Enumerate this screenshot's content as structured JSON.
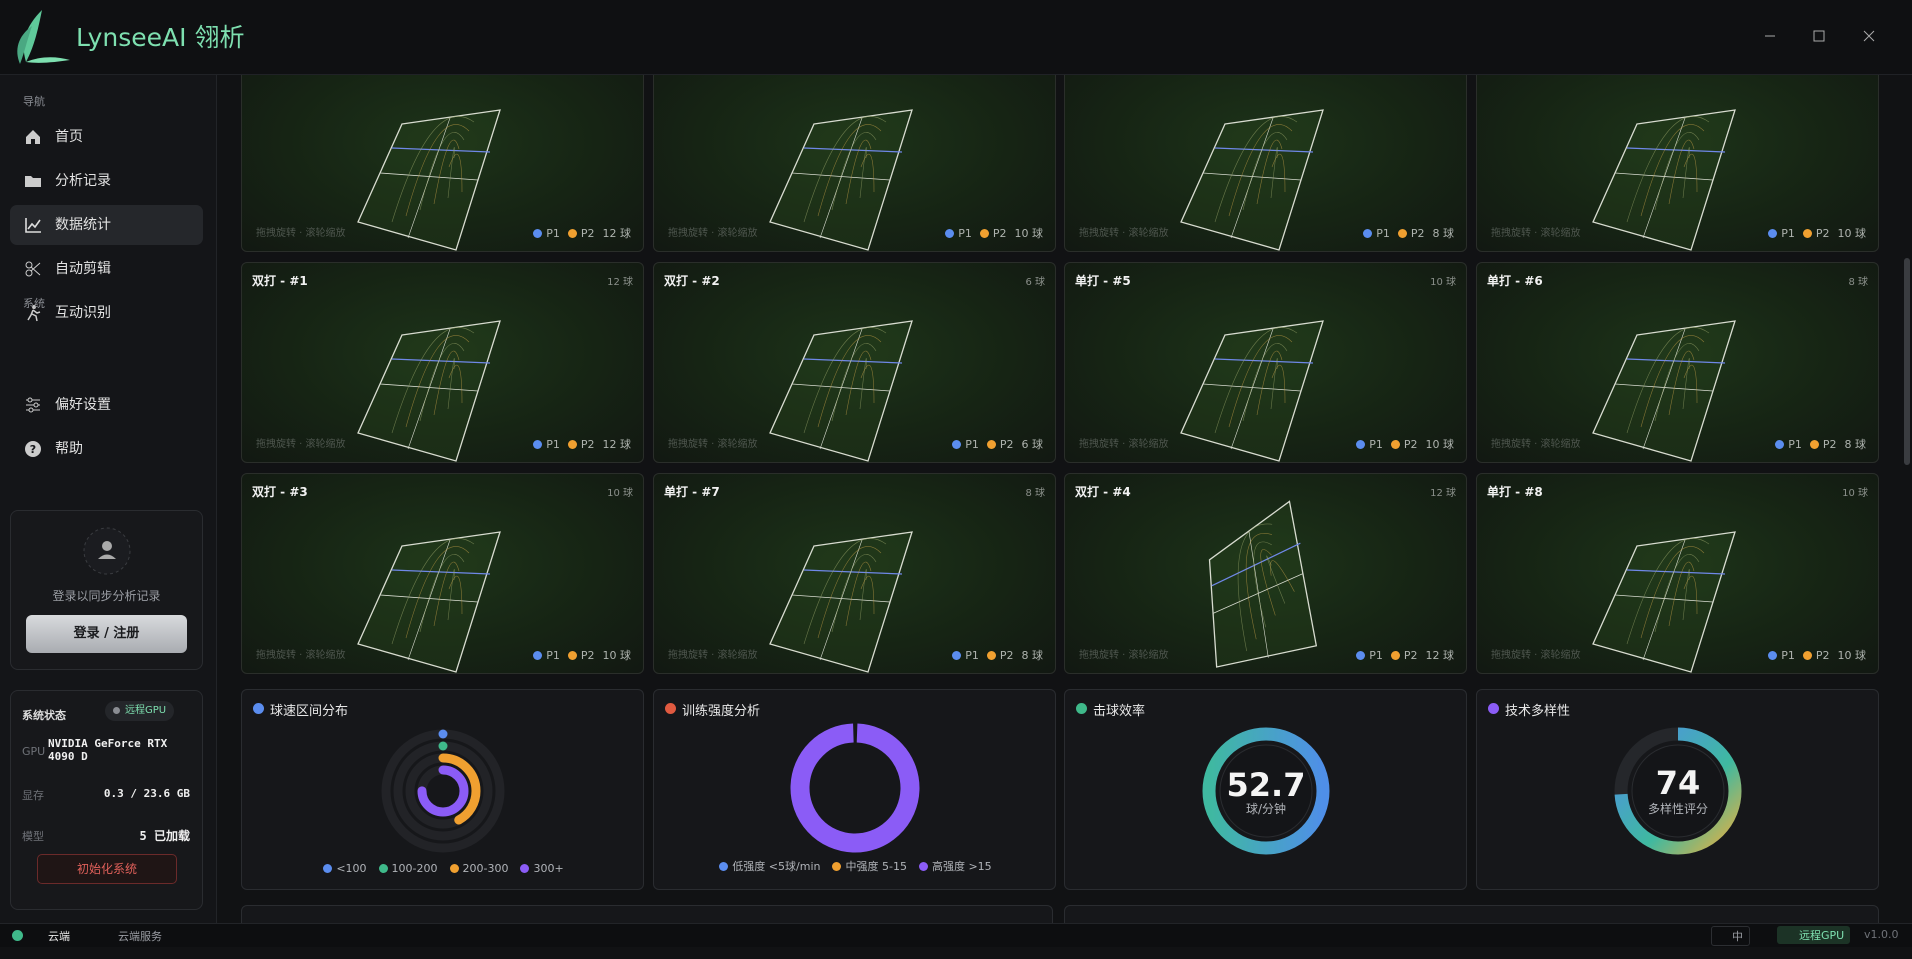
{
  "app": {
    "name": "LynseeAI 翎析"
  },
  "sidebar": {
    "nav_heading": "导航",
    "nav": [
      "首页",
      "分析记录",
      "数据统计",
      "自动剪辑",
      "互动识别"
    ],
    "system_heading": "系统",
    "system": [
      "偏好设置",
      "帮助"
    ]
  },
  "login": {
    "prompt": "登录以同步分析记录",
    "button": "登录 / 注册"
  },
  "status": {
    "title": "系统状态",
    "badge": "远程GPU",
    "rows": [
      [
        "GPU",
        "NVIDIA GeForce RTX 4090 D"
      ],
      [
        "显存",
        "0.3 / 23.6 GB"
      ],
      [
        "模型",
        "5 已加载"
      ]
    ],
    "button": "初始化系统"
  },
  "card_hint": "拖拽旋转 · 滚轮缩放",
  "players": [
    "P1",
    "P2"
  ],
  "cards": [
    {
      "balls": "12 球"
    },
    {
      "balls": "10 球"
    },
    {
      "balls": "8 球"
    },
    {
      "balls": "10 球"
    },
    {
      "title": "双打 - #1",
      "balls": "12 球"
    },
    {
      "title": "双打 - #2",
      "balls": "6 球"
    },
    {
      "title": "单打 - #5",
      "balls": "10 球"
    },
    {
      "title": "单打 - #6",
      "balls": "8 球"
    },
    {
      "title": "双打 - #3",
      "balls": "10 球"
    },
    {
      "title": "单打 - #7",
      "balls": "8 球"
    },
    {
      "title": "双打 - #4",
      "balls": "12 球"
    },
    {
      "title": "单打 - #8",
      "balls": "10 球"
    }
  ],
  "stats": {
    "speed": {
      "title": "球速区间分布",
      "categories": [
        "<100",
        "100-200",
        "200-300",
        "300+"
      ],
      "colors": [
        "#5b8def",
        "#3fb98a",
        "#f0a030",
        "#8b5cf6"
      ],
      "values": [
        0,
        0,
        42,
        75
      ]
    },
    "intensity": {
      "title": "训练强度分析",
      "categories": [
        "低强度 <5球/min",
        "中强度 5-15",
        "高强度 >15"
      ],
      "colors": [
        "#5b8def",
        "#f0a030",
        "#8b5cf6"
      ],
      "values": [
        0,
        0,
        100
      ]
    },
    "efficiency": {
      "title": "击球效率",
      "value": 52.7,
      "unit": "球/分钟"
    },
    "diversity": {
      "title": "技术多样性",
      "value": 74,
      "unit": "多样性评分"
    }
  },
  "footer": {
    "cloud": "云端",
    "service": "云端服务",
    "lang": "中",
    "gpu": "远程GPU",
    "version": "v1.0.0"
  }
}
